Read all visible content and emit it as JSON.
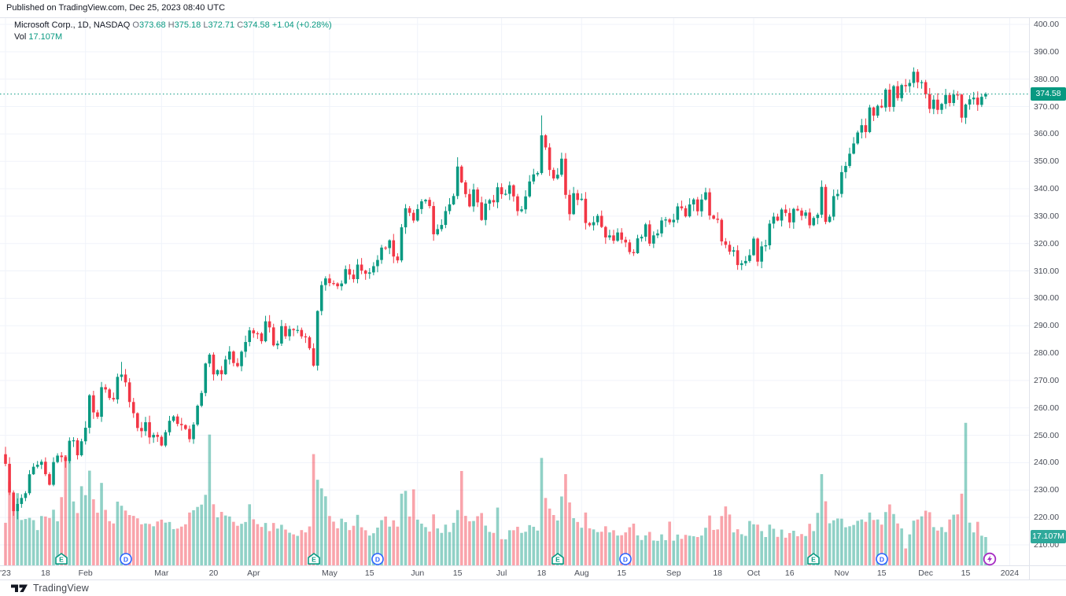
{
  "header": {
    "published_line": "Published on TradingView.com, Dec 25, 2023 08:40 UTC"
  },
  "legend": {
    "title": "Microsoft Corp., 1D, NASDAQ",
    "o_label": "O",
    "o": "373.68",
    "h_label": "H",
    "h": "375.18",
    "l_label": "L",
    "l": "372.71",
    "c_label": "C",
    "c": "374.58",
    "change": "+1.04 (+0.28%)",
    "vol_label": "Vol",
    "vol_value": "17.107M"
  },
  "price_scale": {
    "labels": [
      "400.00",
      "390.00",
      "380.00",
      "370.00",
      "360.00",
      "350.00",
      "340.00",
      "330.00",
      "320.00",
      "310.00",
      "300.00",
      "290.00",
      "280.00",
      "270.00",
      "260.00",
      "250.00",
      "240.00",
      "230.00",
      "220.00",
      "210.00"
    ],
    "price_badge": "374.58",
    "volume_badge": "17.107M"
  },
  "time_scale": {
    "ticks": [
      {
        "label": "'23",
        "i": 0,
        "grid": true
      },
      {
        "label": "18",
        "i": 10,
        "grid": false
      },
      {
        "label": "Feb",
        "i": 20,
        "grid": true
      },
      {
        "label": "Mar",
        "i": 39,
        "grid": true
      },
      {
        "label": "20",
        "i": 52,
        "grid": false
      },
      {
        "label": "Apr",
        "i": 62,
        "grid": true
      },
      {
        "label": "May",
        "i": 81,
        "grid": true
      },
      {
        "label": "15",
        "i": 91,
        "grid": false
      },
      {
        "label": "Jun",
        "i": 103,
        "grid": true
      },
      {
        "label": "15",
        "i": 113,
        "grid": false
      },
      {
        "label": "Jul",
        "i": 124,
        "grid": true
      },
      {
        "label": "18",
        "i": 134,
        "grid": false
      },
      {
        "label": "Aug",
        "i": 144,
        "grid": true
      },
      {
        "label": "15",
        "i": 154,
        "grid": false
      },
      {
        "label": "Sep",
        "i": 167,
        "grid": true
      },
      {
        "label": "18",
        "i": 178,
        "grid": false
      },
      {
        "label": "Oct",
        "i": 187,
        "grid": true
      },
      {
        "label": "16",
        "i": 196,
        "grid": false
      },
      {
        "label": "Nov",
        "i": 209,
        "grid": true
      },
      {
        "label": "15",
        "i": 219,
        "grid": false
      },
      {
        "label": "Dec",
        "i": 230,
        "grid": true
      },
      {
        "label": "15",
        "i": 240,
        "grid": false
      },
      {
        "label": "2024",
        "i": 251,
        "grid": true
      }
    ],
    "markers": [
      {
        "type": "E",
        "i": 14
      },
      {
        "type": "D",
        "i": 30
      },
      {
        "type": "E",
        "i": 77
      },
      {
        "type": "D",
        "i": 93
      },
      {
        "type": "E",
        "i": 138
      },
      {
        "type": "D",
        "i": 155
      },
      {
        "type": "E",
        "i": 202
      },
      {
        "type": "D",
        "i": 219
      },
      {
        "type": "flash",
        "i": 246
      }
    ]
  },
  "footer": {
    "brand": "TradingView"
  },
  "colors": {
    "up": "#089981",
    "down": "#F23645",
    "vol_up": "rgba(8,153,129,0.45)",
    "vol_down": "rgba(242,54,69,0.45)",
    "grid": "#F0F3FA",
    "border": "#E0E3EB",
    "axis_text": "#4A4E58",
    "volume_badge_bg": "#2FA99B",
    "dividend_blue": "#2962FF",
    "earnings_green": "#089981",
    "flash_purple": "#A62BC3"
  },
  "chart_data": {
    "type": "candlestick+volume",
    "title": "Microsoft Corp., 1D, NASDAQ",
    "symbol": "Microsoft Corp.",
    "interval": "1D",
    "exchange": "NASDAQ",
    "y_axis": {
      "min": 210,
      "max": 400,
      "step": 10
    },
    "first_open": 243.08,
    "last_ohlc": {
      "o": 373.68,
      "h": 375.18,
      "l": 372.71,
      "c": 374.58
    },
    "last_volume_m": 17.107,
    "closes": [
      239.58,
      229.1,
      222.31,
      224.93,
      227.12,
      228.85,
      235.77,
      238.51,
      239.23,
      240.35,
      235.81,
      231.93,
      240.22,
      242.58,
      242.04,
      240.61,
      248.0,
      248.16,
      242.71,
      247.81,
      252.75,
      264.6,
      258.35,
      256.77,
      267.56,
      266.73,
      263.62,
      263.1,
      271.32,
      272.17,
      269.32,
      262.15,
      258.06,
      252.67,
      251.51,
      254.77,
      249.22,
      250.16,
      249.42,
      246.27,
      251.11,
      255.29,
      256.87,
      254.15,
      253.7,
      252.32,
      248.59,
      253.92,
      260.79,
      265.44,
      276.2,
      279.43,
      272.23,
      273.78,
      272.29,
      277.66,
      280.57,
      276.38,
      275.23,
      280.51,
      284.05,
      288.3,
      287.23,
      287.18,
      284.34,
      291.6,
      289.39,
      282.83,
      283.49,
      289.84,
      286.14,
      288.8,
      288.37,
      288.45,
      286.11,
      285.76,
      281.77,
      275.42,
      295.37,
      304.83,
      307.26,
      305.56,
      305.41,
      304.4,
      305.41,
      310.65,
      308.65,
      307.0,
      312.31,
      310.11,
      308.97,
      309.46,
      311.74,
      314.0,
      318.52,
      318.34,
      321.18,
      315.26,
      313.85,
      325.92,
      332.89,
      331.21,
      328.39,
      332.58,
      335.4,
      335.94,
      333.68,
      323.38,
      325.26,
      326.79,
      331.85,
      334.29,
      337.34,
      348.1,
      342.33,
      338.05,
      333.56,
      339.71,
      335.02,
      328.6,
      334.57,
      335.85,
      335.05,
      340.54,
      337.99,
      338.15,
      341.27,
      337.22,
      331.83,
      332.47,
      337.2,
      342.66,
      345.24,
      345.73,
      359.49,
      355.08,
      346.87,
      343.77,
      345.11,
      350.98,
      337.77,
      330.72,
      338.37,
      335.92,
      336.34,
      327.5,
      326.66,
      327.78,
      330.11,
      326.05,
      322.23,
      322.97,
      321.01,
      324.04,
      321.4,
      320.4,
      316.88,
      316.48,
      321.88,
      322.46,
      327.0,
      319.97,
      322.98,
      323.7,
      328.41,
      328.79,
      327.76,
      328.66,
      333.55,
      332.88,
      329.91,
      334.27,
      336.09,
      331.77,
      336.06,
      338.7,
      330.22,
      329.06,
      328.65,
      320.77,
      319.53,
      317.01,
      317.54,
      312.14,
      312.79,
      313.64,
      315.75,
      321.8,
      313.39,
      318.96,
      319.36,
      327.26,
      329.82,
      328.39,
      332.42,
      331.16,
      327.73,
      332.64,
      332.06,
      330.11,
      331.32,
      326.67,
      329.32,
      330.53,
      340.67,
      327.89,
      329.81,
      337.31,
      338.11,
      346.07,
      348.32,
      352.8,
      356.53,
      360.53,
      363.2,
      360.69,
      369.67,
      366.68,
      370.27,
      369.67,
      376.17,
      369.85,
      377.44,
      373.07,
      377.85,
      377.43,
      378.61,
      382.7,
      378.85,
      378.91,
      374.51,
      369.14,
      372.52,
      368.8,
      370.95,
      374.23,
      371.3,
      374.38,
      374.37,
      365.93,
      370.73,
      372.65,
      373.26,
      370.62,
      373.54,
      374.58
    ],
    "volumes_m": [
      25.7,
      50.6,
      39.6,
      43.6,
      27.4,
      28.0,
      28.7,
      27.3,
      21.3,
      29.8,
      29.5,
      28.6,
      33.6,
      26.6,
      41.2,
      66.5,
      63.5,
      38.6,
      31.6,
      47.8,
      42.4,
      57.2,
      39.9,
      31.8,
      49.8,
      33.5,
      26.7,
      25.3,
      38.5,
      36.0,
      33.1,
      30.4,
      29.9,
      28.4,
      24.8,
      25.3,
      25.0,
      23.6,
      26.5,
      27.6,
      25.8,
      26.2,
      21.9,
      22.2,
      23.4,
      24.8,
      31.9,
      33.3,
      35.3,
      36.7,
      42.6,
      79.0,
      36.9,
      29.0,
      32.3,
      30.1,
      29.5,
      26.3,
      23.9,
      25.1,
      26.2,
      36.9,
      27.8,
      24.9,
      23.2,
      25.6,
      20.7,
      25.6,
      22.2,
      24.5,
      21.6,
      19.7,
      18.7,
      17.8,
      21.3,
      19.9,
      23.5,
      67.2,
      51.7,
      46.5,
      41.7,
      29.8,
      26.4,
      22.4,
      28.2,
      26.1,
      21.3,
      23.9,
      30.5,
      23.0,
      21.2,
      18.0,
      19.4,
      22.8,
      27.3,
      29.5,
      23.4,
      27.2,
      23.4,
      43.3,
      45.0,
      29.5,
      45.9,
      27.6,
      25.2,
      23.1,
      20.4,
      30.8,
      22.3,
      19.6,
      24.6,
      20.1,
      25.7,
      33.4,
      57.0,
      29.9,
      26.6,
      26.8,
      29.7,
      31.6,
      24.0,
      20.2,
      19.6,
      34.9,
      15.8,
      15.7,
      21.2,
      21.2,
      23.3,
      19.6,
      20.3,
      24.3,
      23.3,
      21.0,
      64.9,
      40.7,
      34.3,
      30.4,
      27.1,
      41.6,
      55.1,
      38.0,
      28.5,
      26.2,
      22.7,
      31.9,
      22.4,
      21.7,
      20.1,
      20.3,
      23.6,
      19.9,
      21.2,
      18.0,
      18.2,
      19.9,
      23.0,
      25.2,
      18.1,
      15.3,
      18.1,
      20.2,
      15.0,
      14.8,
      18.7,
      15.2,
      26.4,
      14.9,
      18.6,
      16.0,
      18.4,
      17.9,
      17.6,
      17.1,
      18.0,
      22.7,
      30.1,
      21.4,
      21.7,
      29.8,
      35.6,
      30.7,
      19.9,
      21.8,
      18.8,
      17.8,
      26.8,
      24.8,
      24.6,
      20.7,
      17.1,
      24.6,
      22.1,
      17.2,
      21.6,
      16.7,
      19.5,
      20.9,
      17.6,
      18.9,
      17.7,
      25.1,
      20.7,
      31.7,
      55.1,
      38.7,
      25.4,
      27.2,
      28.3,
      28.2,
      23.0,
      23.6,
      24.4,
      26.9,
      27.7,
      26.3,
      31.9,
      27.4,
      27.7,
      24.6,
      32.2,
      36.8,
      31.0,
      25.3,
      22.3,
      10.2,
      18.7,
      27.0,
      27.7,
      29.6,
      33.0,
      32.1,
      23.1,
      21.0,
      23.1,
      20.1,
      27.7,
      30.6,
      30.8,
      43.3,
      86.1,
      25.8,
      19.9,
      26.3,
      17.9,
      17.1
    ],
    "high_overrides": {
      "0": 245.8,
      "29": 276.8,
      "113": 351.5,
      "134": 366.78,
      "227": 384.3
    },
    "low_overrides": {
      "3": 219.35,
      "77": 275.0
    }
  }
}
